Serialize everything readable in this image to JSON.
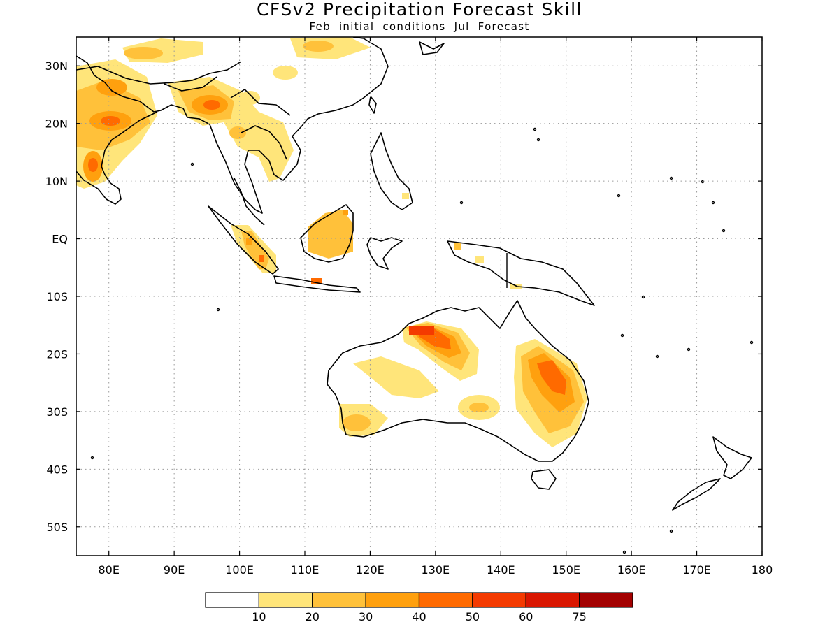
{
  "title": "CFSv2 Precipitation Forecast Skill",
  "subtitle": "Feb initial conditions  Jul Forecast",
  "axes": {
    "lon_ticks": [
      "80E",
      "90E",
      "100E",
      "110E",
      "120E",
      "130E",
      "140E",
      "150E",
      "160E",
      "170E",
      "180"
    ],
    "lat_ticks": [
      "30N",
      "20N",
      "10N",
      "EQ",
      "10S",
      "20S",
      "30S",
      "40S",
      "50S"
    ],
    "lon_range": [
      75,
      180
    ],
    "lat_range": [
      -55,
      35
    ]
  },
  "legend": {
    "labels": [
      "10",
      "20",
      "30",
      "40",
      "50",
      "60",
      "75"
    ],
    "colors": [
      "#ffffff",
      "#ffe57a",
      "#ffc13a",
      "#ffa00e",
      "#ff6a00",
      "#f43a00",
      "#d91600",
      "#a30000"
    ]
  },
  "colors": {
    "background": "#ffffff",
    "coastline": "#000000",
    "grid": "#9a9a9a"
  }
}
